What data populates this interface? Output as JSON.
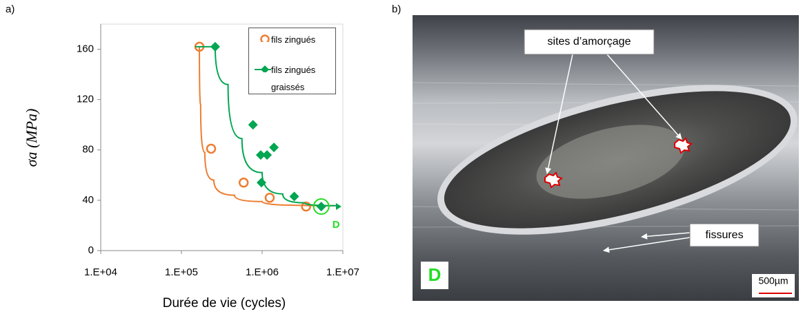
{
  "chart_data": {
    "type": "scatter",
    "panel_label": "a)",
    "xlabel": "Durée de vie (cycles)",
    "ylabel": "σa (MPa)",
    "xscale": "log",
    "xlim": [
      10000,
      10000000
    ],
    "xticks": [
      {
        "value": 10000,
        "label": "1.E+04"
      },
      {
        "value": 100000,
        "label": "1.E+05"
      },
      {
        "value": 1000000,
        "label": "1.E+06"
      },
      {
        "value": 10000000,
        "label": "1.E+07"
      }
    ],
    "ylim": [
      0,
      180
    ],
    "yticks": [
      0,
      40,
      80,
      120,
      160
    ],
    "grid": false,
    "series": [
      {
        "name": "fils zingués",
        "color": "#ed7d31",
        "marker": "circle",
        "x": [
          167000,
          233000,
          590000,
          1240000,
          3500000
        ],
        "values": [
          162,
          81,
          54,
          42,
          35
        ],
        "curve": {
          "x": [
            167000,
            173000,
            195000,
            252000,
            455000,
            1000000,
            3270000,
            8700000
          ],
          "values": [
            162,
            116,
            78,
            56,
            44,
            39,
            36,
            35.7
          ]
        }
      },
      {
        "name": "fils zingués graissés",
        "color": "#00a651",
        "marker": "diamond",
        "x": [
          262000,
          770000,
          960000,
          1150000,
          1400000,
          980000,
          2500000,
          5400000
        ],
        "values": [
          162,
          100,
          76,
          76,
          82,
          54,
          43,
          35
        ],
        "curve": {
          "x": [
            148000,
            262000,
            378000,
            562000,
            1000000,
            1800000,
            3300000,
            8700000
          ],
          "values": [
            162,
            162,
            132,
            89,
            62,
            45,
            38,
            35.7
          ]
        }
      }
    ],
    "highlight": {
      "series": 1,
      "index": 7,
      "label": "D",
      "color": "#22dd22"
    }
  },
  "photo": {
    "panel_label": "b)",
    "labels": [
      "sites d’amorçage",
      "fissures"
    ],
    "marker": "D",
    "scale_bar": "500µm"
  }
}
